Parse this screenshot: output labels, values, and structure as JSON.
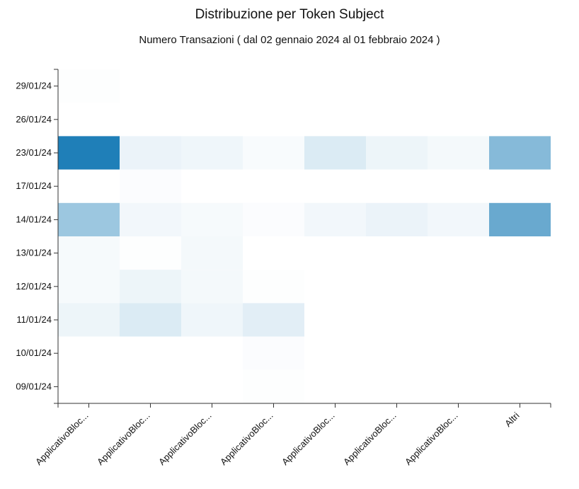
{
  "chart_data": {
    "type": "heatmap",
    "title": "Distribuzione per Token Subject",
    "subtitle": "Numero Transazioni ( dal 02 gennaio 2024 al 01 febbraio 2024 )",
    "x_categories": [
      "ApplicativoBloc...",
      "ApplicativoBloc...",
      "ApplicativoBloc...",
      "ApplicativoBloc...",
      "ApplicativoBloc...",
      "ApplicativoBloc...",
      "ApplicativoBloc...",
      "Altri"
    ],
    "y_categories": [
      "29/01/24",
      "26/01/24",
      "23/01/24",
      "17/01/24",
      "14/01/24",
      "13/01/24",
      "12/01/24",
      "11/01/24",
      "10/01/24",
      "09/01/24"
    ],
    "values": [
      [
        1,
        0,
        0,
        0,
        0,
        0,
        0,
        0
      ],
      [
        0,
        0,
        0,
        0,
        0,
        0,
        0,
        0
      ],
      [
        100,
        9,
        7,
        3,
        16,
        8,
        5,
        54
      ],
      [
        0,
        2,
        0,
        0,
        0,
        0,
        0,
        0
      ],
      [
        44,
        6,
        4,
        2,
        6,
        9,
        6,
        67
      ],
      [
        4,
        1,
        5,
        0,
        0,
        0,
        0,
        0
      ],
      [
        4,
        8,
        5,
        1,
        0,
        0,
        0,
        0
      ],
      [
        8,
        16,
        7,
        13,
        0,
        0,
        0,
        0
      ],
      [
        0,
        0,
        0,
        2,
        0,
        0,
        0,
        0
      ],
      [
        0,
        0,
        0,
        1,
        0,
        0,
        0,
        0
      ]
    ],
    "color_low": "#ffffff",
    "color_high": "#1f7fb8",
    "legend": "none"
  }
}
